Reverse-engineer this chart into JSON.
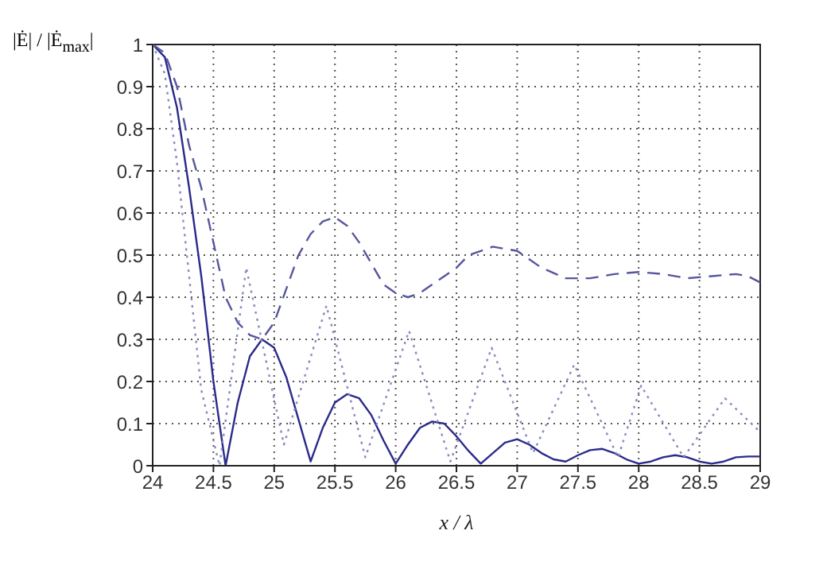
{
  "chart_data": {
    "type": "line",
    "xlabel": "x / λ",
    "ylabel": "|Ė| / |Ė$_{max}$|",
    "xlim": [
      24,
      29
    ],
    "xticks": [
      24,
      24.5,
      25,
      25.5,
      26,
      26.5,
      27,
      27.5,
      28,
      28.5,
      29
    ],
    "ylim": [
      0,
      1
    ],
    "yticks": [
      0,
      0.1,
      0.2,
      0.3,
      0.4,
      0.5,
      0.6,
      0.7,
      0.8,
      0.9,
      1
    ],
    "grid": true,
    "legend": false,
    "marker": "none",
    "series": [
      {
        "color": "#2a2a8c",
        "line_style": "solid",
        "x": [
          24,
          24.1,
          24.2,
          24.3,
          24.4,
          24.5,
          24.6,
          24.7,
          24.8,
          24.9,
          25,
          25.1,
          25.2,
          25.3,
          25.4,
          25.5,
          25.6,
          25.7,
          25.8,
          25.9,
          26,
          26.1,
          26.2,
          26.3,
          26.4,
          26.5,
          26.6,
          26.7,
          26.8,
          26.9,
          27,
          27.1,
          27.2,
          27.3,
          27.4,
          27.5,
          27.6,
          27.7,
          27.8,
          27.9,
          28,
          28.1,
          28.2,
          28.3,
          28.4,
          28.5,
          28.6,
          28.7,
          28.8,
          28.9,
          29
        ],
        "values": [
          1,
          0.97,
          0.85,
          0.66,
          0.45,
          0.2,
          0,
          0.15,
          0.26,
          0.3,
          0.28,
          0.21,
          0.11,
          0.01,
          0.09,
          0.15,
          0.17,
          0.16,
          0.12,
          0.06,
          0.005,
          0.05,
          0.09,
          0.105,
          0.1,
          0.07,
          0.035,
          0.005,
          0.03,
          0.055,
          0.063,
          0.05,
          0.03,
          0.015,
          0.01,
          0.025,
          0.037,
          0.04,
          0.03,
          0.015,
          0.005,
          0.01,
          0.02,
          0.025,
          0.02,
          0.01,
          0.005,
          0.01,
          0.02,
          0.022,
          0.022
        ]
      },
      {
        "color": "#55559f",
        "line_style": "dashed",
        "x": [
          24,
          24.1,
          24.2,
          24.3,
          24.4,
          24.5,
          24.6,
          24.7,
          24.8,
          24.9,
          25,
          25.1,
          25.2,
          25.3,
          25.4,
          25.5,
          25.6,
          25.7,
          25.8,
          25.9,
          26,
          26.1,
          26.2,
          26.3,
          26.5,
          26.6,
          26.8,
          27,
          27.2,
          27.4,
          27.6,
          27.8,
          28,
          28.2,
          28.4,
          28.6,
          28.8,
          28.9,
          29
        ],
        "values": [
          1,
          0.98,
          0.9,
          0.76,
          0.66,
          0.53,
          0.4,
          0.34,
          0.31,
          0.3,
          0.34,
          0.42,
          0.5,
          0.55,
          0.58,
          0.59,
          0.57,
          0.53,
          0.48,
          0.43,
          0.41,
          0.4,
          0.41,
          0.43,
          0.47,
          0.5,
          0.52,
          0.51,
          0.47,
          0.445,
          0.445,
          0.455,
          0.46,
          0.455,
          0.445,
          0.45,
          0.455,
          0.45,
          0.435
        ]
      },
      {
        "color": "#8a8ac0",
        "line_style": "dotted",
        "x": [
          24,
          24.1,
          24.2,
          24.3,
          24.4,
          24.55,
          24.77,
          25.08,
          25.43,
          25.75,
          26.11,
          26.45,
          26.79,
          27.13,
          27.47,
          27.83,
          28.02,
          28.37,
          28.71,
          29
        ],
        "values": [
          1,
          0.93,
          0.72,
          0.45,
          0.18,
          0,
          0.47,
          0.05,
          0.38,
          0.02,
          0.32,
          0.01,
          0.28,
          0.03,
          0.24,
          0.02,
          0.19,
          0.02,
          0.16,
          0.08
        ]
      }
    ]
  }
}
